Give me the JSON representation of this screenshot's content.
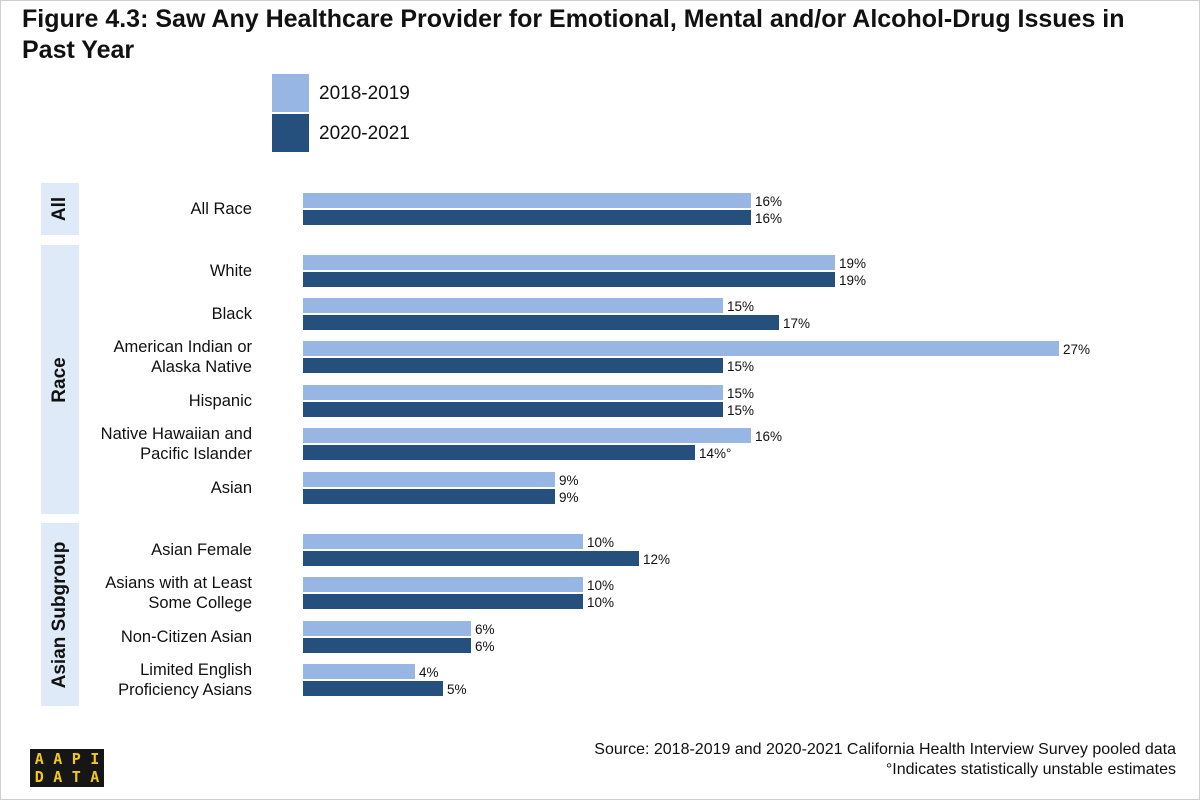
{
  "title": "Figure 4.3: Saw Any Healthcare Provider for Emotional, Mental and/or Alcohol-Drug Issues in Past Year",
  "legend": [
    {
      "label": "2018-2019",
      "color": "#98b6e4"
    },
    {
      "label": "2020-2021",
      "color": "#25507e"
    }
  ],
  "source": {
    "line1": "Source: 2018-2019 and 2020-2021 California Health Interview Survey pooled data",
    "line2": "°Indicates statistically unstable estimates"
  },
  "logo": {
    "text": "AAPIDATA"
  },
  "chart_data": {
    "type": "bar",
    "orientation": "horizontal",
    "title": "Figure 4.3: Saw Any Healthcare Provider for Emotional, Mental and/or Alcohol-Drug Issues in Past Year",
    "xlabel": "",
    "ylabel": "",
    "xlim": [
      0,
      27
    ],
    "grid": false,
    "legend_position": "top-left",
    "series_names": [
      "2018-2019",
      "2020-2021"
    ],
    "groups": [
      {
        "name": "All",
        "categories": [
          {
            "label": "All Race",
            "values": [
              16,
              16
            ],
            "labels": [
              "16%",
              "16%"
            ]
          }
        ]
      },
      {
        "name": "Race",
        "categories": [
          {
            "label": "White",
            "values": [
              19,
              19
            ],
            "labels": [
              "19%",
              "19%"
            ]
          },
          {
            "label": "Black",
            "values": [
              15,
              17
            ],
            "labels": [
              "15%",
              "17%"
            ]
          },
          {
            "label": "American Indian or\nAlaska Native",
            "values": [
              27,
              15
            ],
            "labels": [
              "27%",
              "15%"
            ]
          },
          {
            "label": "Hispanic",
            "values": [
              15,
              15
            ],
            "labels": [
              "15%",
              "15%"
            ]
          },
          {
            "label": "Native Hawaiian and\nPacific Islander",
            "values": [
              16,
              14
            ],
            "labels": [
              "16%",
              "14%°"
            ]
          },
          {
            "label": "Asian",
            "values": [
              9,
              9
            ],
            "labels": [
              "9%",
              "9%"
            ]
          }
        ]
      },
      {
        "name": "Asian Subgroup",
        "categories": [
          {
            "label": "Asian Female",
            "values": [
              10,
              12
            ],
            "labels": [
              "10%",
              "12%"
            ]
          },
          {
            "label": "Asians with at Least\nSome College",
            "values": [
              10,
              10
            ],
            "labels": [
              "10%",
              "10%"
            ]
          },
          {
            "label": "Non-Citizen Asian",
            "values": [
              6,
              6
            ],
            "labels": [
              "6%",
              "6%"
            ]
          },
          {
            "label": "Limited English\nProficiency Asians",
            "values": [
              4,
              5
            ],
            "labels": [
              "4%",
              "5%"
            ]
          }
        ]
      }
    ]
  }
}
